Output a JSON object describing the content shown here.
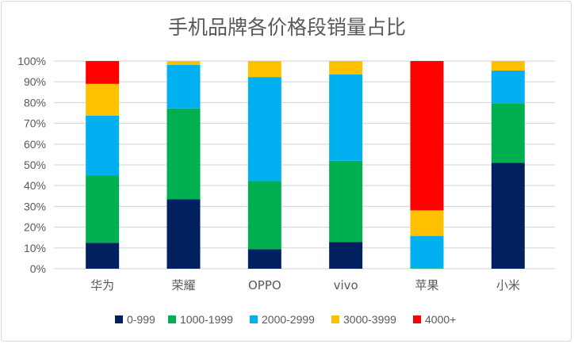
{
  "chart_data": {
    "type": "bar",
    "stacked": true,
    "percent": true,
    "title": "手机品牌各价格段销量占比",
    "xlabel": "",
    "ylabel": "",
    "ylim": [
      0,
      100
    ],
    "yticks": [
      "0%",
      "10%",
      "20%",
      "30%",
      "40%",
      "50%",
      "60%",
      "70%",
      "80%",
      "90%",
      "100%"
    ],
    "grid": true,
    "legend_position": "bottom",
    "categories": [
      "华为",
      "荣耀",
      "OPPO",
      "vivo",
      "苹果",
      "小米"
    ],
    "series": [
      {
        "name": "0-999",
        "color": "#002060",
        "values": [
          12.5,
          33.5,
          9.4,
          12.9,
          0,
          51.0
        ]
      },
      {
        "name": "1000-1999",
        "color": "#00B050",
        "values": [
          32.5,
          43.7,
          32.8,
          39.1,
          0.3,
          28.7
        ]
      },
      {
        "name": "2000-2999",
        "color": "#00B0F0",
        "values": [
          28.7,
          21.0,
          50.1,
          41.5,
          15.5,
          15.7
        ]
      },
      {
        "name": "3000-3999",
        "color": "#FFC000",
        "values": [
          15.3,
          1.8,
          7.7,
          6.5,
          12.3,
          4.6
        ]
      },
      {
        "name": "4000+",
        "color": "#FF0000",
        "values": [
          11.0,
          0,
          0,
          0,
          71.9,
          0
        ]
      }
    ]
  }
}
